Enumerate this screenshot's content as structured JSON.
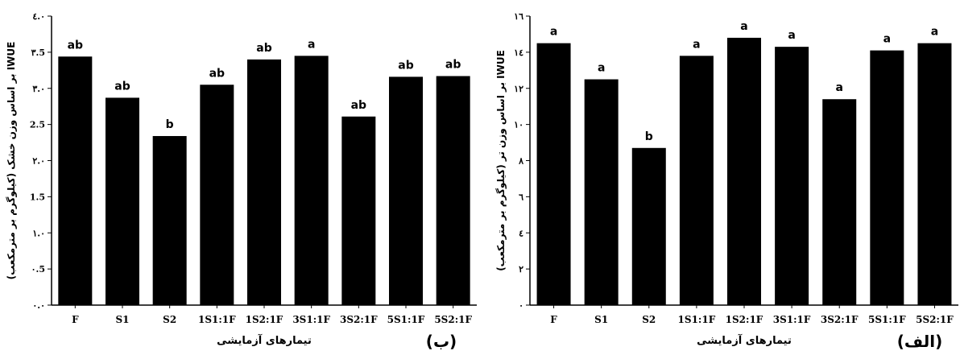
{
  "chart_data": [
    {
      "id": "panel-b",
      "type": "bar",
      "panel_label": "(ب)",
      "xlabel": "تیمارهای آزمایشی",
      "ylabel": "IWUE بر اساس وزن خشک (کیلوگرم بر مترمکعب)",
      "categories": [
        "F",
        "S1",
        "S2",
        "1S1:1F",
        "1S2:1F",
        "3S1:1F",
        "3S2:1F",
        "5S1:1F",
        "5S2:1F"
      ],
      "values": [
        3.44,
        2.87,
        2.34,
        3.05,
        3.4,
        3.45,
        2.61,
        3.16,
        3.17
      ],
      "labels": [
        "ab",
        "ab",
        "b",
        "ab",
        "ab",
        "a",
        "ab",
        "ab",
        "ab"
      ],
      "ylim": [
        0,
        4.0
      ],
      "yticks": [
        "۰.۰",
        "۰.5",
        "۱.۰",
        "1.5",
        "۲.۰",
        "2.5",
        "۳.۰",
        "۳.5",
        "٤.۰"
      ],
      "bar_color": "#000000"
    },
    {
      "id": "panel-a",
      "type": "bar",
      "panel_label": "(الف)",
      "xlabel": "تیمارهای آزمایشی",
      "ylabel": "IWUE بر اساس وزن تر (کیلوگرم بر مترمکعب)",
      "categories": [
        "F",
        "S1",
        "S2",
        "1S1:1F",
        "1S2:1F",
        "3S1:1F",
        "3S2:1F",
        "5S1:1F",
        "5S2:1F"
      ],
      "values": [
        14.5,
        12.5,
        8.7,
        13.8,
        14.8,
        14.3,
        11.4,
        14.1,
        14.5
      ],
      "labels": [
        "a",
        "a",
        "b",
        "a",
        "a",
        "a",
        "a",
        "a",
        "a"
      ],
      "ylim": [
        0,
        16
      ],
      "yticks": [
        "۰",
        "۲",
        "٤",
        "٦",
        "۸",
        "۱۰",
        "۱۲",
        "۱٤",
        "۱٦"
      ],
      "bar_color": "#000000"
    }
  ]
}
